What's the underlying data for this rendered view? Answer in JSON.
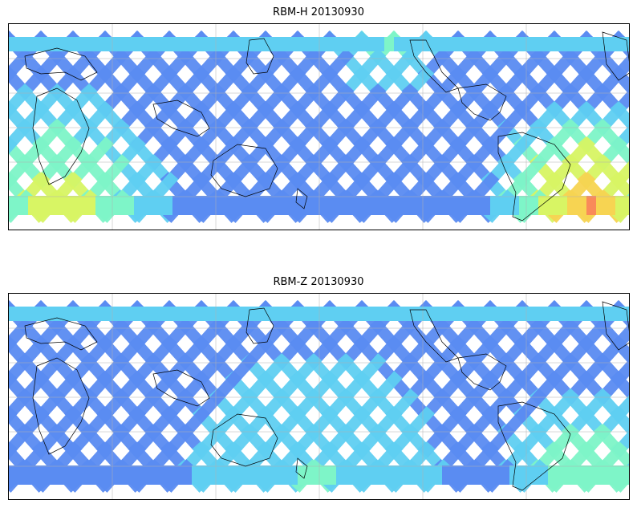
{
  "maps": [
    {
      "title": "RBM-H 20130930",
      "colorscale": [
        "#5f5ff2",
        "#5a8cf2",
        "#5fcff2",
        "#7ef5c8",
        "#d8f564",
        "#f7d452",
        "#f98a5a"
      ],
      "swath_intensity": {
        "base": 0.15,
        "high_latitude_band": "south",
        "hotspots": [
          {
            "region": "south-atlantic-south-america",
            "level": 0.95
          },
          {
            "region": "south-indian-ocean",
            "level": 0.7
          },
          {
            "region": "north-pacific",
            "level": 0.5
          }
        ]
      }
    },
    {
      "title": "RBM-Z 20130930",
      "colorscale": [
        "#5f5ff2",
        "#5a8cf2",
        "#5fcff2",
        "#7ef5c8",
        "#d8f564",
        "#f7d452",
        "#f98a5a"
      ],
      "swath_intensity": {
        "base": 0.12,
        "high_latitude_band": "south",
        "hotspots": [
          {
            "region": "south-atlantic-south-america",
            "level": 0.6
          },
          {
            "region": "southern-ocean",
            "level": 0.45
          }
        ]
      }
    }
  ]
}
